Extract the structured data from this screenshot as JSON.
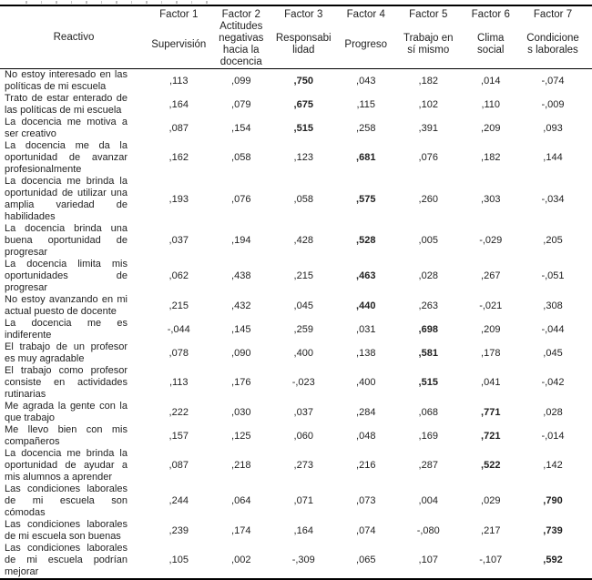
{
  "table": {
    "row_header_label": "Reactivo",
    "columns": [
      {
        "factor": "Factor 1",
        "name": "Supervisión"
      },
      {
        "factor": "Factor 2",
        "name": "Actitudes\nnegativas\nhacia la\ndocencia"
      },
      {
        "factor": "Factor 3",
        "name": "Responsabi\nlidad"
      },
      {
        "factor": "Factor 4",
        "name": "Progreso"
      },
      {
        "factor": "Factor 5",
        "name": "Trabajo en\nsí mismo"
      },
      {
        "factor": "Factor 6",
        "name": "Clima\nsocial"
      },
      {
        "factor": "Factor 7",
        "name": "Condicione\ns laborales"
      }
    ],
    "rows": [
      {
        "label": "No estoy interesado en las políticas de mi escuela",
        "values": [
          ",113",
          ",099",
          ",750",
          ",043",
          ",182",
          ",014",
          "-,074"
        ],
        "bold_index": 2
      },
      {
        "label": "Trato de estar enterado de las políticas de mi escuela",
        "values": [
          ",164",
          ",079",
          ",675",
          ",115",
          ",102",
          ",110",
          "-,009"
        ],
        "bold_index": 2
      },
      {
        "label": "La docencia me motiva a ser creativo",
        "values": [
          ",087",
          ",154",
          ",515",
          ",258",
          ",391",
          ",209",
          ",093"
        ],
        "bold_index": 2
      },
      {
        "label": "La docencia me da la oportunidad de avanzar profesionalmente",
        "values": [
          ",162",
          ",058",
          ",123",
          ",681",
          ",076",
          ",182",
          ",144"
        ],
        "bold_index": 3
      },
      {
        "label": "La docencia me brinda la oportunidad de utilizar una amplia variedad de habilidades",
        "values": [
          ",193",
          ",076",
          ",058",
          ",575",
          ",260",
          ",303",
          "-,034"
        ],
        "bold_index": 3
      },
      {
        "label": "La docencia brinda una buena oportunidad de progresar",
        "values": [
          ",037",
          ",194",
          ",428",
          ",528",
          ",005",
          "-,029",
          ",205"
        ],
        "bold_index": 3
      },
      {
        "label": "La docencia limita mis oportunidades de progresar",
        "values": [
          ",062",
          ",438",
          ",215",
          ",463",
          ",028",
          ",267",
          "-,051"
        ],
        "bold_index": 3
      },
      {
        "label": "No estoy avanzando en mi actual puesto de docente",
        "values": [
          ",215",
          ",432",
          ",045",
          ",440",
          ",263",
          "-,021",
          ",308"
        ],
        "bold_index": 3
      },
      {
        "label": "La docencia me es indiferente",
        "values": [
          "-,044",
          ",145",
          ",259",
          ",031",
          ",698",
          ",209",
          "-,044"
        ],
        "bold_index": 4
      },
      {
        "label": "El trabajo de un profesor es muy agradable",
        "values": [
          ",078",
          ",090",
          ",400",
          ",138",
          ",581",
          ",178",
          ",045"
        ],
        "bold_index": 4
      },
      {
        "label": "El trabajo como profesor consiste en actividades rutinarias",
        "values": [
          ",113",
          ",176",
          "-,023",
          ",400",
          ",515",
          ",041",
          "-,042"
        ],
        "bold_index": 4
      },
      {
        "label": "Me agrada la gente con la que trabajo",
        "values": [
          ",222",
          ",030",
          ",037",
          ",284",
          ",068",
          ",771",
          ",028"
        ],
        "bold_index": 5
      },
      {
        "label": "Me llevo bien con mis compañeros",
        "values": [
          ",157",
          ",125",
          ",060",
          ",048",
          ",169",
          ",721",
          "-,014"
        ],
        "bold_index": 5
      },
      {
        "label": "La docencia me brinda la oportunidad de ayudar a mis alumnos a aprender",
        "values": [
          ",087",
          ",218",
          ",273",
          ",216",
          ",287",
          ",522",
          ",142"
        ],
        "bold_index": 5
      },
      {
        "label": "Las condiciones laborales de mi escuela son cómodas",
        "values": [
          ",244",
          ",064",
          ",071",
          ",073",
          ",004",
          ",029",
          ",790"
        ],
        "bold_index": 6
      },
      {
        "label": "Las condiciones laborales de mi escuela son buenas",
        "values": [
          ",239",
          ",174",
          ",164",
          ",074",
          "-,080",
          ",217",
          ",739"
        ],
        "bold_index": 6
      },
      {
        "label": "Las condiciones laborales de mi escuela podrían mejorar",
        "values": [
          ",105",
          ",002",
          "-,309",
          ",065",
          ",107",
          "-,107",
          ",592"
        ],
        "bold_index": 6
      }
    ]
  }
}
